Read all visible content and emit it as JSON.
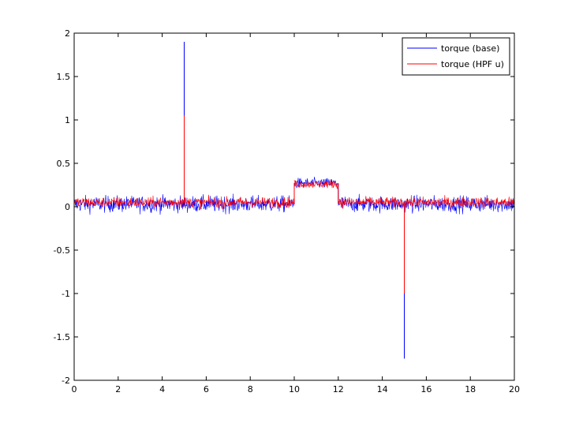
{
  "chart_data": {
    "type": "line",
    "title": "",
    "xlabel": "",
    "ylabel": "",
    "xlim": [
      0,
      20
    ],
    "ylim": [
      -2,
      2
    ],
    "grid": false,
    "x_ticks": [
      "0",
      "2",
      "4",
      "6",
      "8",
      "10",
      "12",
      "14",
      "16",
      "18",
      "20"
    ],
    "y_ticks": [
      "2",
      "1.5",
      "1",
      "0.5",
      "0",
      "-0.5",
      "-1",
      "-1.5",
      "-2"
    ],
    "legend_position": "top-right",
    "series": [
      {
        "name": "torque (base)",
        "color": "#0000ff",
        "segments": [
          {
            "x_start": 0,
            "x_end": 10,
            "center": 0.03,
            "amplitude": 0.14
          },
          {
            "x_start": 10,
            "x_end": 12,
            "center": 0.27,
            "amplitude": 0.09
          },
          {
            "x_start": 12,
            "x_end": 20,
            "center": 0.03,
            "amplitude": 0.14
          }
        ],
        "spikes": [
          {
            "x": 5,
            "y": 1.9
          },
          {
            "x": 15,
            "y": -1.75
          }
        ]
      },
      {
        "name": "torque (HPF u)",
        "color": "#ff0000",
        "segments": [
          {
            "x_start": 0,
            "x_end": 10,
            "center": 0.05,
            "amplitude": 0.09
          },
          {
            "x_start": 10,
            "x_end": 12,
            "center": 0.26,
            "amplitude": 0.07
          },
          {
            "x_start": 12,
            "x_end": 20,
            "center": 0.05,
            "amplitude": 0.09
          }
        ],
        "spikes": [
          {
            "x": 5,
            "y": 1.05
          },
          {
            "x": 15,
            "y": -1.0
          }
        ]
      }
    ]
  }
}
